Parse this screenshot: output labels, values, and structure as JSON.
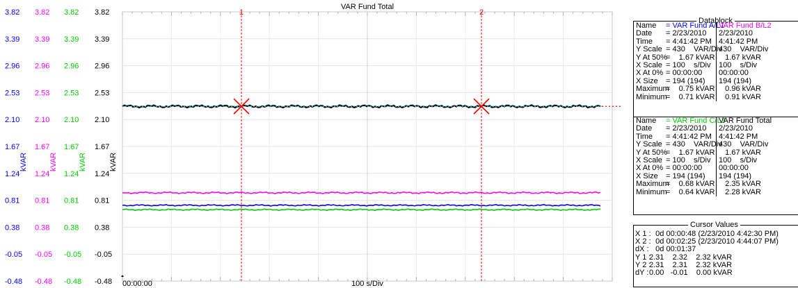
{
  "chart_data": {
    "type": "line",
    "title": "VAR Fund Total",
    "xlabel": "100 s/Div",
    "x_start_label": "00:00:00",
    "ylabel": "kVAR",
    "y_ticks": [
      "3.82",
      "3.39",
      "2.96",
      "2.53",
      "2.10",
      "1.67",
      "1.24",
      "0.81",
      "0.38",
      "-0.05",
      "-0.48"
    ],
    "ylim": [
      -0.48,
      3.82
    ],
    "xlim": [
      0,
      1000
    ],
    "grid": true,
    "axis_colors": [
      "#0000ff",
      "#ff00ff",
      "#00cc00",
      "#000000"
    ],
    "cursors": [
      {
        "label": "1",
        "x": 48
      },
      {
        "label": "2",
        "x": 145
      }
    ],
    "cursor_color": "#ff0000",
    "series": [
      {
        "name": "VAR Fund A/L1",
        "color": "#0000ff",
        "x": [
          0,
          194
        ],
        "values": [
          0.73,
          0.73
        ],
        "min": 0.71,
        "max": 0.75
      },
      {
        "name": "VAR Fund B/L2",
        "color": "#ff00ff",
        "x": [
          0,
          194
        ],
        "values": [
          0.93,
          0.93
        ],
        "min": 0.91,
        "max": 0.96
      },
      {
        "name": "VAR Fund C/L3",
        "color": "#00cc00",
        "x": [
          0,
          194
        ],
        "values": [
          0.66,
          0.66
        ],
        "min": 0.64,
        "max": 0.68
      },
      {
        "name": "VAR Fund Total",
        "color": "#000000",
        "x": [
          0,
          194
        ],
        "values": [
          2.31,
          2.31
        ],
        "min": 2.28,
        "max": 2.35
      }
    ]
  },
  "datablock": {
    "title": "Datablock",
    "groups": [
      {
        "name_label": "Name",
        "series_names": [
          "= VAR Fund A/L1",
          "VAR Fund B/L2"
        ],
        "name_colors": [
          "#0000ff",
          "#ff00ff"
        ],
        "rows": [
          [
            "Date",
            "= 2/23/2010",
            "2/23/2010"
          ],
          [
            "Time",
            "= 4:41:42 PM",
            "4:41:42 PM"
          ],
          [
            "Y Scale",
            "= 430    VAR/Div",
            "430    VAR/Div"
          ],
          [
            "Y At 50%",
            "=    1.67 kVAR",
            "   1.67 kVAR"
          ],
          [
            "X Scale",
            "= 100    s/Div",
            "100    s/Div"
          ],
          [
            "X At 0%",
            "= 00:00:00",
            "00:00:00"
          ],
          [
            "X Size",
            "= 194 (194)",
            "194 (194)"
          ],
          [
            "Maximum",
            "=    0.75 kVAR",
            "   0.96 kVAR"
          ],
          [
            "Minimum",
            "=    0.71 kVAR",
            "   0.91 kVAR"
          ]
        ]
      },
      {
        "name_label": "Name",
        "series_names": [
          "= VAR Fund C/L3",
          "VAR Fund Total"
        ],
        "name_colors": [
          "#00cc00",
          "#000000"
        ],
        "rows": [
          [
            "Date",
            "= 2/23/2010",
            "2/23/2010"
          ],
          [
            "Time",
            "= 4:41:42 PM",
            "4:41:42 PM"
          ],
          [
            "Y Scale",
            "= 430    VAR/Div",
            "430    VAR/Div"
          ],
          [
            "Y At 50%",
            "=    1.67 kVAR",
            "   1.67 kVAR"
          ],
          [
            "X Scale",
            "= 100    s/Div",
            "100    s/Div"
          ],
          [
            "X At 0%",
            "= 00:00:00",
            "00:00:00"
          ],
          [
            "X Size",
            "= 194 (194)",
            "194 (194)"
          ],
          [
            "Maximum",
            "=    0.68 kVAR",
            "   2.35 kVAR"
          ],
          [
            "Minimum",
            "=    0.64 kVAR",
            "   2.28 kVAR"
          ]
        ]
      }
    ]
  },
  "cursor_values": {
    "title": "Cursor Values",
    "rows": [
      [
        "X 1 :",
        "   0d 00:00:48 (2/23/2010 4:42:30 PM)"
      ],
      [
        "X 2 :",
        "   0d 00:02:25 (2/23/2010 4:44:07 PM)"
      ],
      [
        "dX :",
        "   0d 00:01:37"
      ],
      [
        "Y 1 :",
        "2.31    2.32    2.32 kVAR"
      ],
      [
        "Y 2 :",
        "2.31    2.31    2.32 kVAR"
      ],
      [
        "dY :",
        "0.00   -0.01    0.00 kVAR"
      ]
    ]
  }
}
